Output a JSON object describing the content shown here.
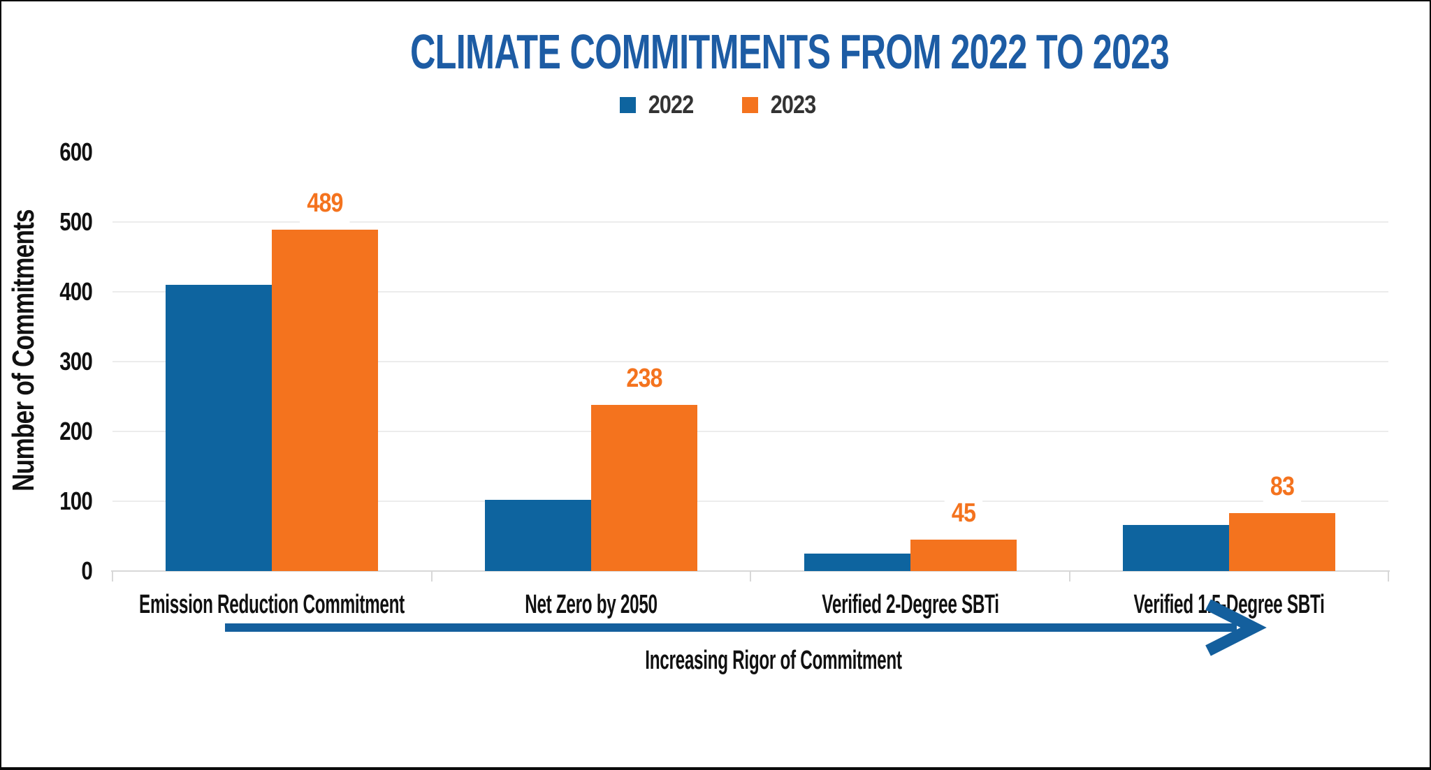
{
  "chart_data": {
    "type": "bar",
    "title": "CLIMATE COMMITMENTS FROM 2022 TO 2023",
    "categories": [
      "Emission Reduction Commitment",
      "Net Zero by 2050",
      "Verified 2-Degree SBTi",
      "Verified 1.5-Degree SBTi"
    ],
    "series": [
      {
        "name": "2022",
        "color": "#0E649F",
        "values": [
          410,
          102,
          25,
          66
        ]
      },
      {
        "name": "2023",
        "color": "#F4731E",
        "values": [
          489,
          238,
          45,
          83
        ]
      }
    ],
    "value_labels_series": "2023",
    "value_labels": [
      "489",
      "238",
      "45",
      "83"
    ],
    "xlabel": "",
    "ylabel": "Number of Commitments",
    "yticks": [
      0,
      100,
      200,
      300,
      400,
      500,
      600
    ],
    "ylim": [
      0,
      600
    ],
    "grid": "horizontal",
    "legend_position": "top",
    "annotation": "Increasing Rigor of Commitment",
    "arrow": {
      "direction": "right",
      "label": "Increasing Rigor of Commitment"
    }
  },
  "colors": {
    "title": "#1D5CA4",
    "bar_2022": "#0E649F",
    "bar_2023": "#F4731E",
    "value_label": "#F4731E",
    "arrow": "#145F9D",
    "axis_text": "#111111",
    "legend_text": "#333333",
    "gridline": "#ECECEC",
    "axis_line": "#D8D8D8"
  }
}
